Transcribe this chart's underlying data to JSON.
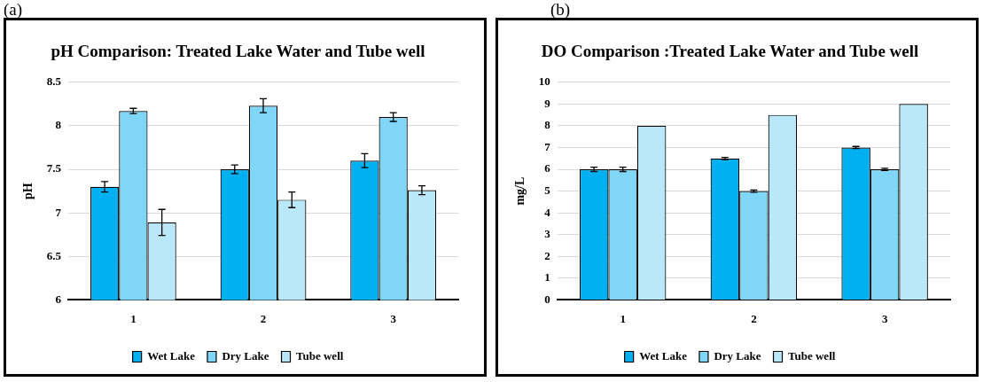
{
  "chart_data": [
    {
      "type": "bar",
      "title": "pH Comparison: Treated Lake Water and Tube well",
      "ylabel": "pH",
      "annotations": [
        "(a)"
      ],
      "categories": [
        "1",
        "2",
        "3"
      ],
      "ylim": [
        6,
        8.5
      ],
      "yticks": [
        6,
        6.5,
        7,
        7.5,
        8,
        8.5
      ],
      "grid": "y",
      "legend": "bottom",
      "series": [
        {
          "name": "Wet Lake",
          "color": "#00b0f0",
          "values": [
            7.3,
            7.5,
            7.6
          ],
          "errors": [
            0.06,
            0.05,
            0.08
          ]
        },
        {
          "name": "Dry Lake",
          "color": "#7fd6f7",
          "values": [
            8.17,
            8.23,
            8.1
          ],
          "errors": [
            0.03,
            0.08,
            0.05
          ]
        },
        {
          "name": "Tube well",
          "color": "#b8e8fa",
          "values": [
            6.89,
            7.15,
            7.26
          ],
          "errors": [
            0.15,
            0.09,
            0.05
          ]
        }
      ]
    },
    {
      "type": "bar",
      "title": "DO Comparison :Treated Lake Water and Tube well",
      "ylabel": "mg/L",
      "annotations": [
        "(b)"
      ],
      "categories": [
        "1",
        "2",
        "3"
      ],
      "ylim": [
        0,
        10
      ],
      "yticks": [
        0,
        1,
        2,
        3,
        4,
        5,
        6,
        7,
        8,
        9,
        10
      ],
      "grid": "y",
      "legend": "bottom",
      "series": [
        {
          "name": "Wet Lake",
          "color": "#00b0f0",
          "values": [
            6,
            6.5,
            7
          ],
          "errors": [
            0.1,
            0.05,
            0.05
          ]
        },
        {
          "name": "Dry Lake",
          "color": "#7fd6f7",
          "values": [
            6,
            5,
            6
          ],
          "errors": [
            0.1,
            0.05,
            0.05
          ]
        },
        {
          "name": "Tube well",
          "color": "#b8e8fa",
          "values": [
            8,
            8.5,
            9
          ],
          "errors": [
            null,
            null,
            null
          ]
        }
      ]
    }
  ]
}
